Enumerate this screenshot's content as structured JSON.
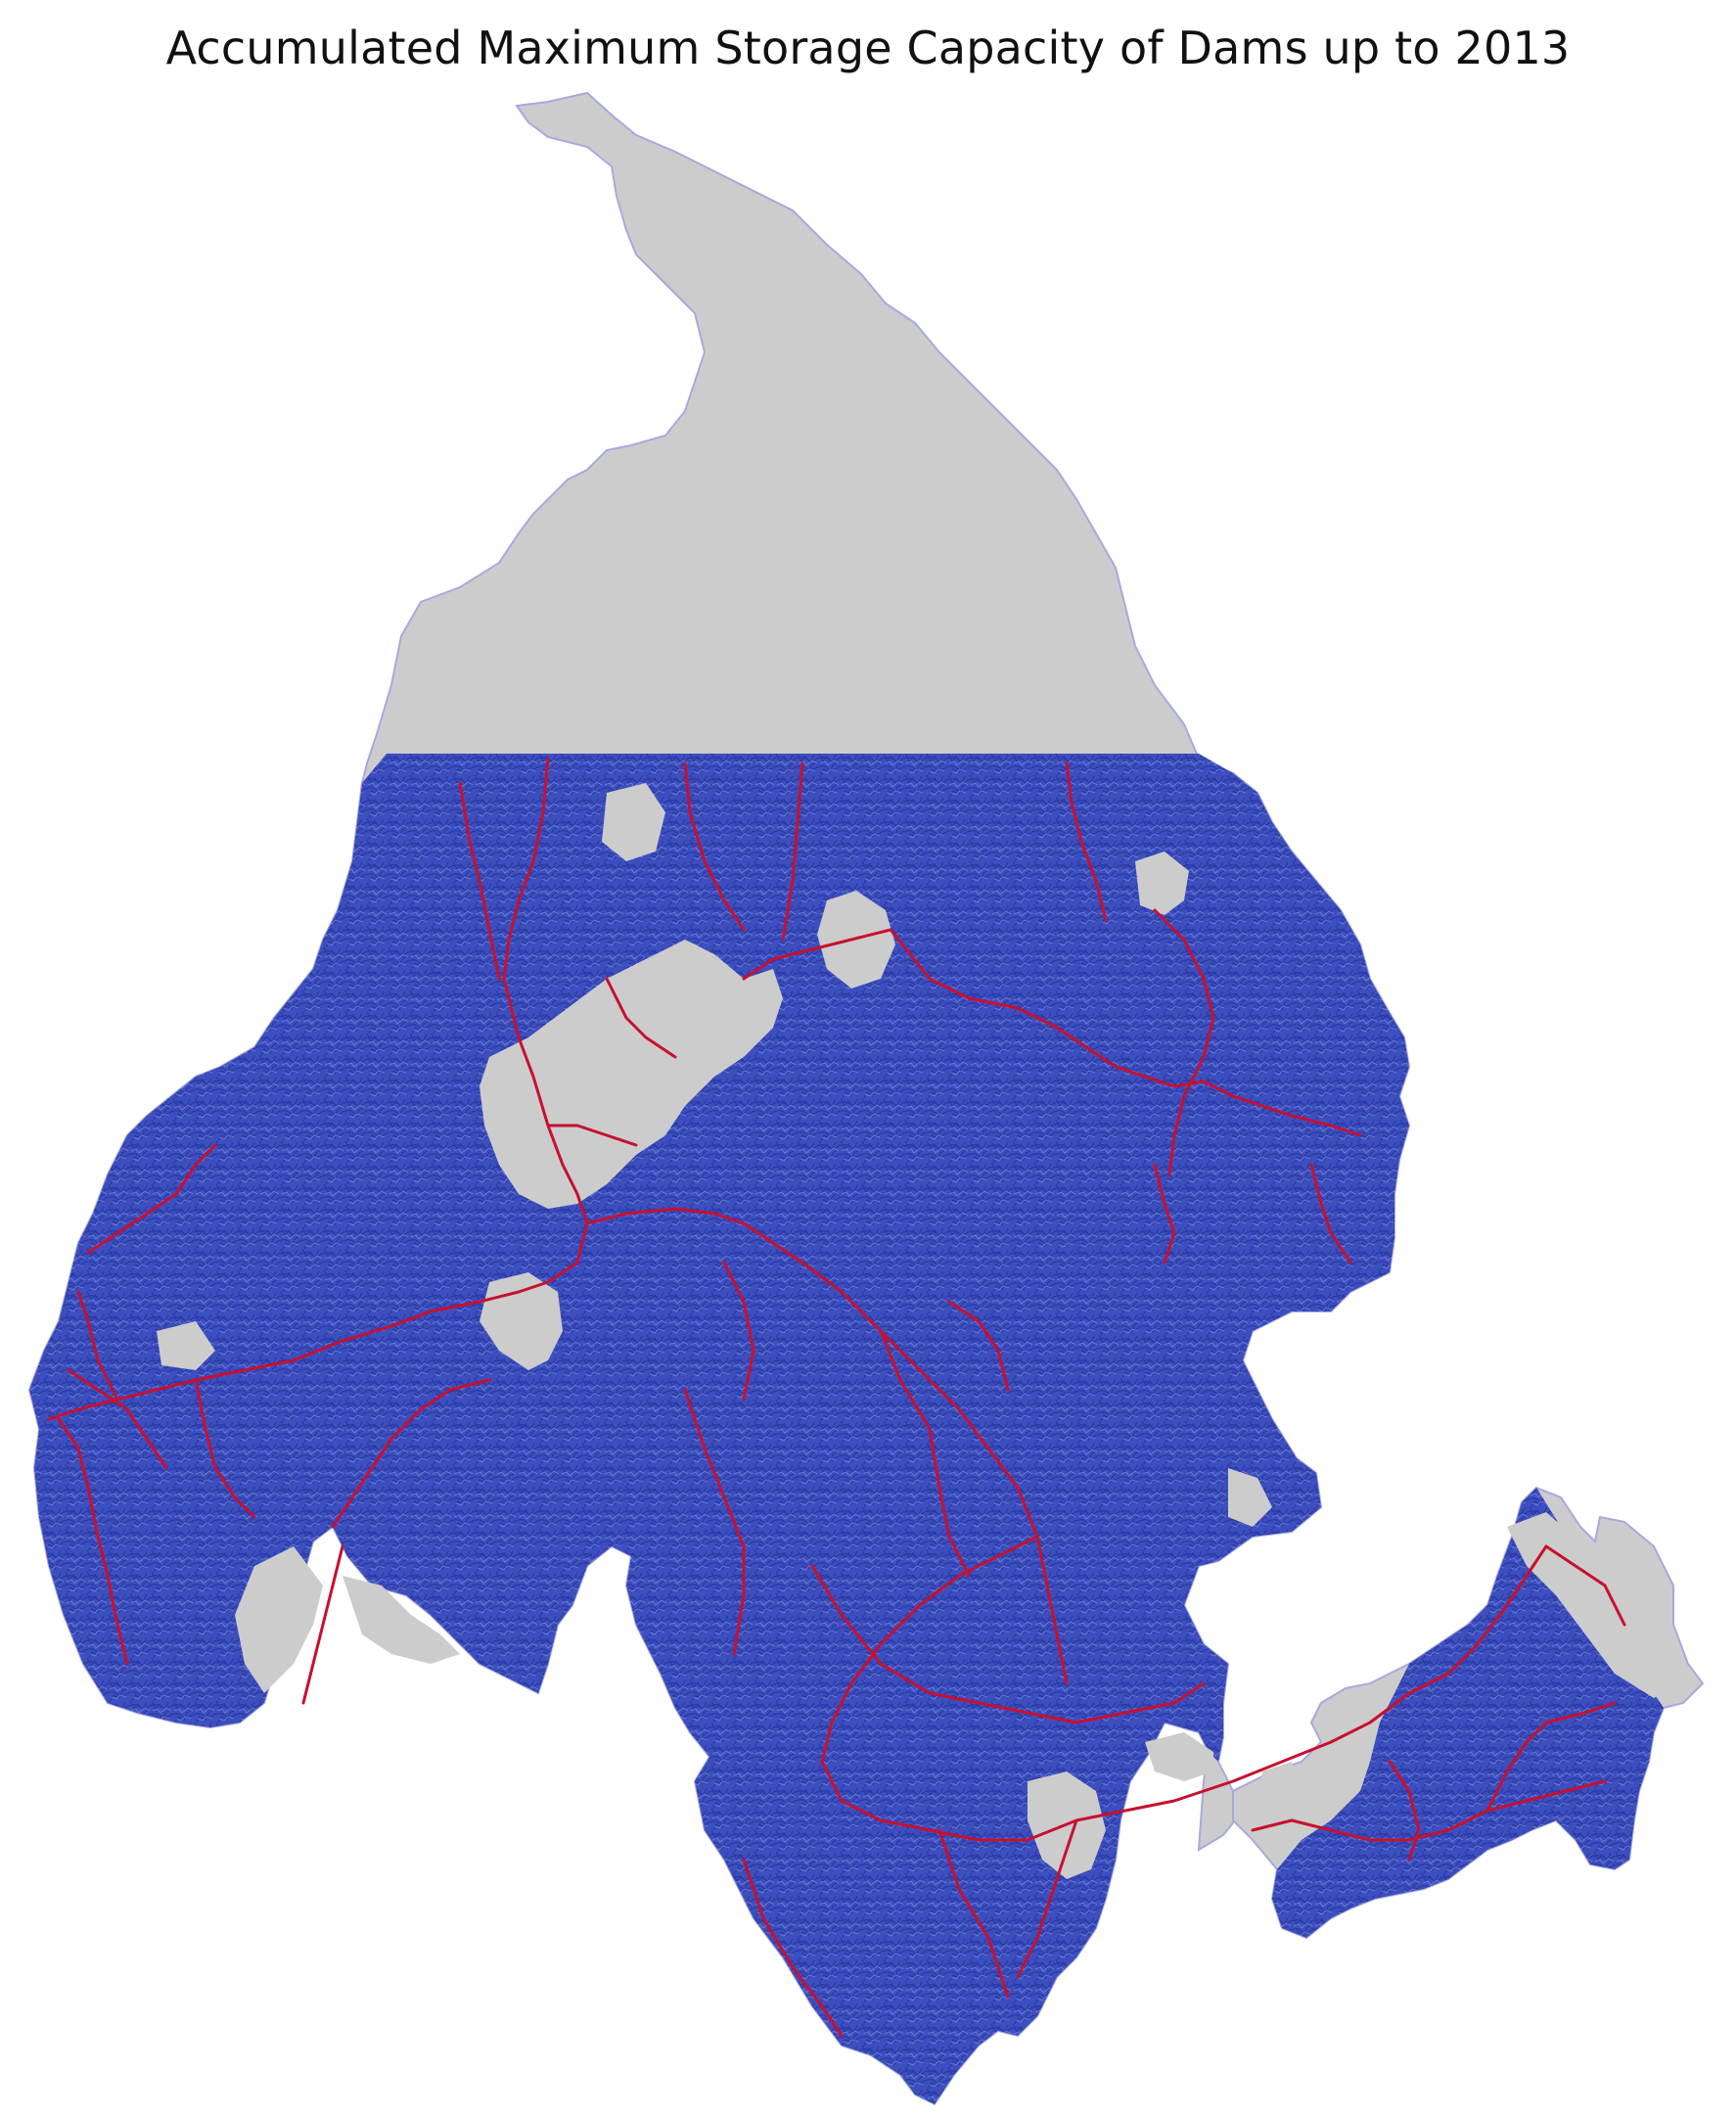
{
  "title": "Accumulated Maximum Storage Capacity of Dams up to 2013",
  "map": {
    "basin_fill": "#cccccc",
    "basin_outline": "#a8a8e0",
    "river_color": "#3547b8",
    "affected_river_color": "#c8102e",
    "background": "#ffffff",
    "legend": false,
    "axes": false
  }
}
